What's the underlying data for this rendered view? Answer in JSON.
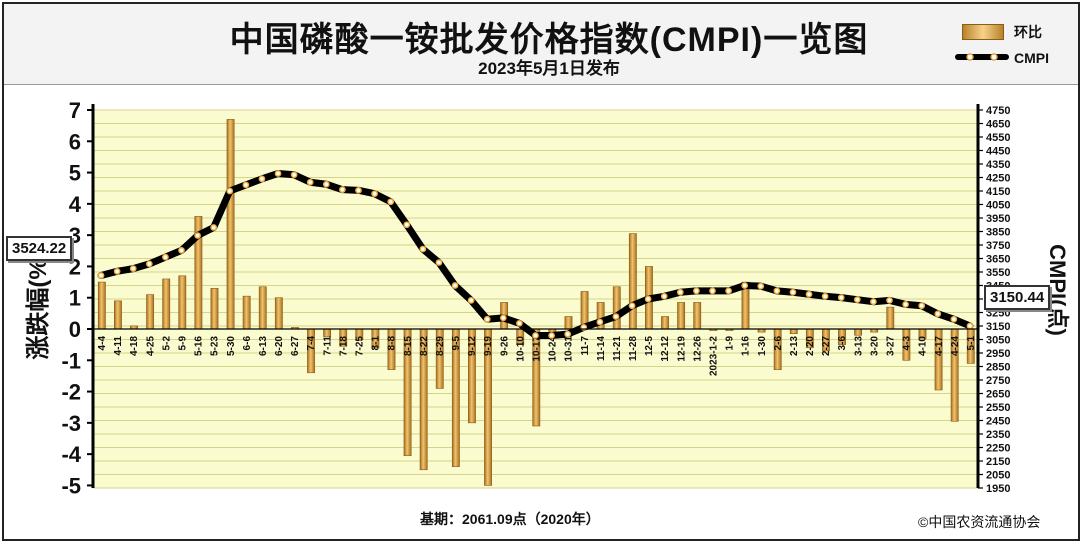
{
  "title": "中国磷酸一铵批发价格指数(CMPI)一览图",
  "subtitle": "2023年5月1日发布",
  "legend": {
    "bar_label": "环比",
    "line_label": "CMPI"
  },
  "base_note": "基期：2061.09点（2020年）",
  "copyright": "©中国农资流通协会",
  "callouts": {
    "start": "3524.22",
    "end": "3150.44"
  },
  "chart_data": {
    "type": "bar+line",
    "categories": [
      "4-4",
      "4-11",
      "4-18",
      "4-25",
      "5-2",
      "5-9",
      "5-16",
      "5-23",
      "5-30",
      "6-6",
      "6-13",
      "6-20",
      "6-27",
      "7-4",
      "7-11",
      "7-18",
      "7-25",
      "8-1",
      "8-8",
      "8-15",
      "8-22",
      "8-29",
      "9-5",
      "9-12",
      "9-19",
      "9-26",
      "10-10",
      "10-17",
      "10-24",
      "10-31",
      "11-7",
      "11-14",
      "11-21",
      "11-28",
      "12-5",
      "12-12",
      "12-19",
      "12-26",
      "2023-1-2",
      "1-9",
      "1-16",
      "1-30",
      "2-6",
      "2-13",
      "2-20",
      "2-27",
      "3-6",
      "3-13",
      "3-20",
      "3-27",
      "4-3",
      "4-10",
      "4-17",
      "4-24",
      "5-1"
    ],
    "series": [
      {
        "name": "环比",
        "axis": "left",
        "type": "bar",
        "values": [
          1.5,
          0.9,
          0.1,
          1.1,
          1.6,
          1.7,
          3.6,
          1.3,
          6.7,
          1.05,
          1.35,
          1.0,
          0.05,
          -1.4,
          -0.25,
          -0.55,
          -0.35,
          -0.6,
          -1.3,
          -4.05,
          -4.5,
          -1.9,
          -4.4,
          -3.0,
          -5.0,
          0.85,
          -0.5,
          -3.1,
          -0.1,
          0.4,
          1.2,
          0.85,
          1.35,
          3.05,
          2.0,
          0.4,
          0.85,
          0.85,
          -0.05,
          -0.05,
          1.5,
          -0.1,
          -1.3,
          -0.15,
          -0.6,
          -0.7,
          -0.5,
          -0.2,
          -0.1,
          0.7,
          -1.0,
          -0.3,
          -1.95,
          -2.95,
          -1.1
        ]
      },
      {
        "name": "CMPI",
        "axis": "right",
        "type": "line",
        "values": [
          3524.22,
          3555,
          3575,
          3610,
          3660,
          3710,
          3820,
          3880,
          4150,
          4195,
          4240,
          4280,
          4270,
          4215,
          4200,
          4160,
          4155,
          4130,
          4070,
          3900,
          3720,
          3620,
          3450,
          3340,
          3200,
          3210,
          3170,
          3080,
          3080,
          3090,
          3140,
          3180,
          3220,
          3300,
          3350,
          3370,
          3400,
          3410,
          3410,
          3410,
          3450,
          3445,
          3410,
          3400,
          3385,
          3370,
          3360,
          3345,
          3330,
          3340,
          3310,
          3300,
          3240,
          3200,
          3150.44
        ]
      }
    ],
    "y_left": {
      "label": "涨跌幅(%)",
      "min": -5,
      "max": 7,
      "ticks": [
        "7",
        "6",
        "5",
        "4",
        "3",
        "2",
        "1",
        "0",
        "-1",
        "-2",
        "-3",
        "-4",
        "-5"
      ]
    },
    "y_right": {
      "label": "CMPI(点)",
      "min": 1950,
      "max": 4750,
      "step": 100
    },
    "grid": true
  }
}
